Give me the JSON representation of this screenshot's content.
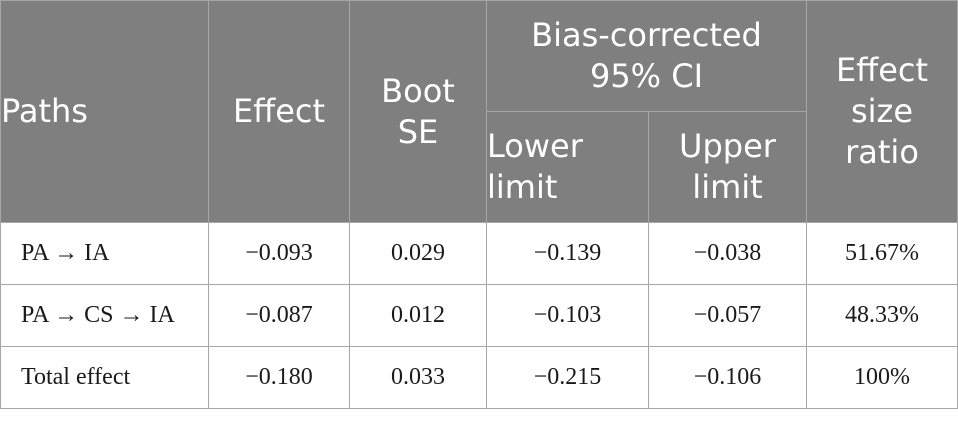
{
  "table": {
    "headers": {
      "paths": "Paths",
      "effect": "Effect",
      "boot_se": "Boot\nSE",
      "ci_group": "Bias-corrected\n95% CI",
      "lower_limit": "Lower\nlimit",
      "upper_limit": "Upper\nlimit",
      "effect_size_ratio": "Effect\nsize\nratio"
    },
    "rows": [
      {
        "path": "PA → IA",
        "effect": "−0.093",
        "boot_se": "0.029",
        "lower": "−0.139",
        "upper": "−0.038",
        "ratio": "51.67%"
      },
      {
        "path": "PA → CS → IA",
        "effect": "−0.087",
        "boot_se": "0.012",
        "lower": "−0.103",
        "upper": "−0.057",
        "ratio": "48.33%"
      },
      {
        "path": "Total effect",
        "effect": "−0.180",
        "boot_se": "0.033",
        "lower": "−0.215",
        "upper": "−0.106",
        "ratio": "100%"
      }
    ]
  },
  "colors": {
    "header_bg": "#7f7f7f",
    "header_text": "#ffffff",
    "border": "#a6a6a6",
    "body_text": "#1a1a1a"
  }
}
